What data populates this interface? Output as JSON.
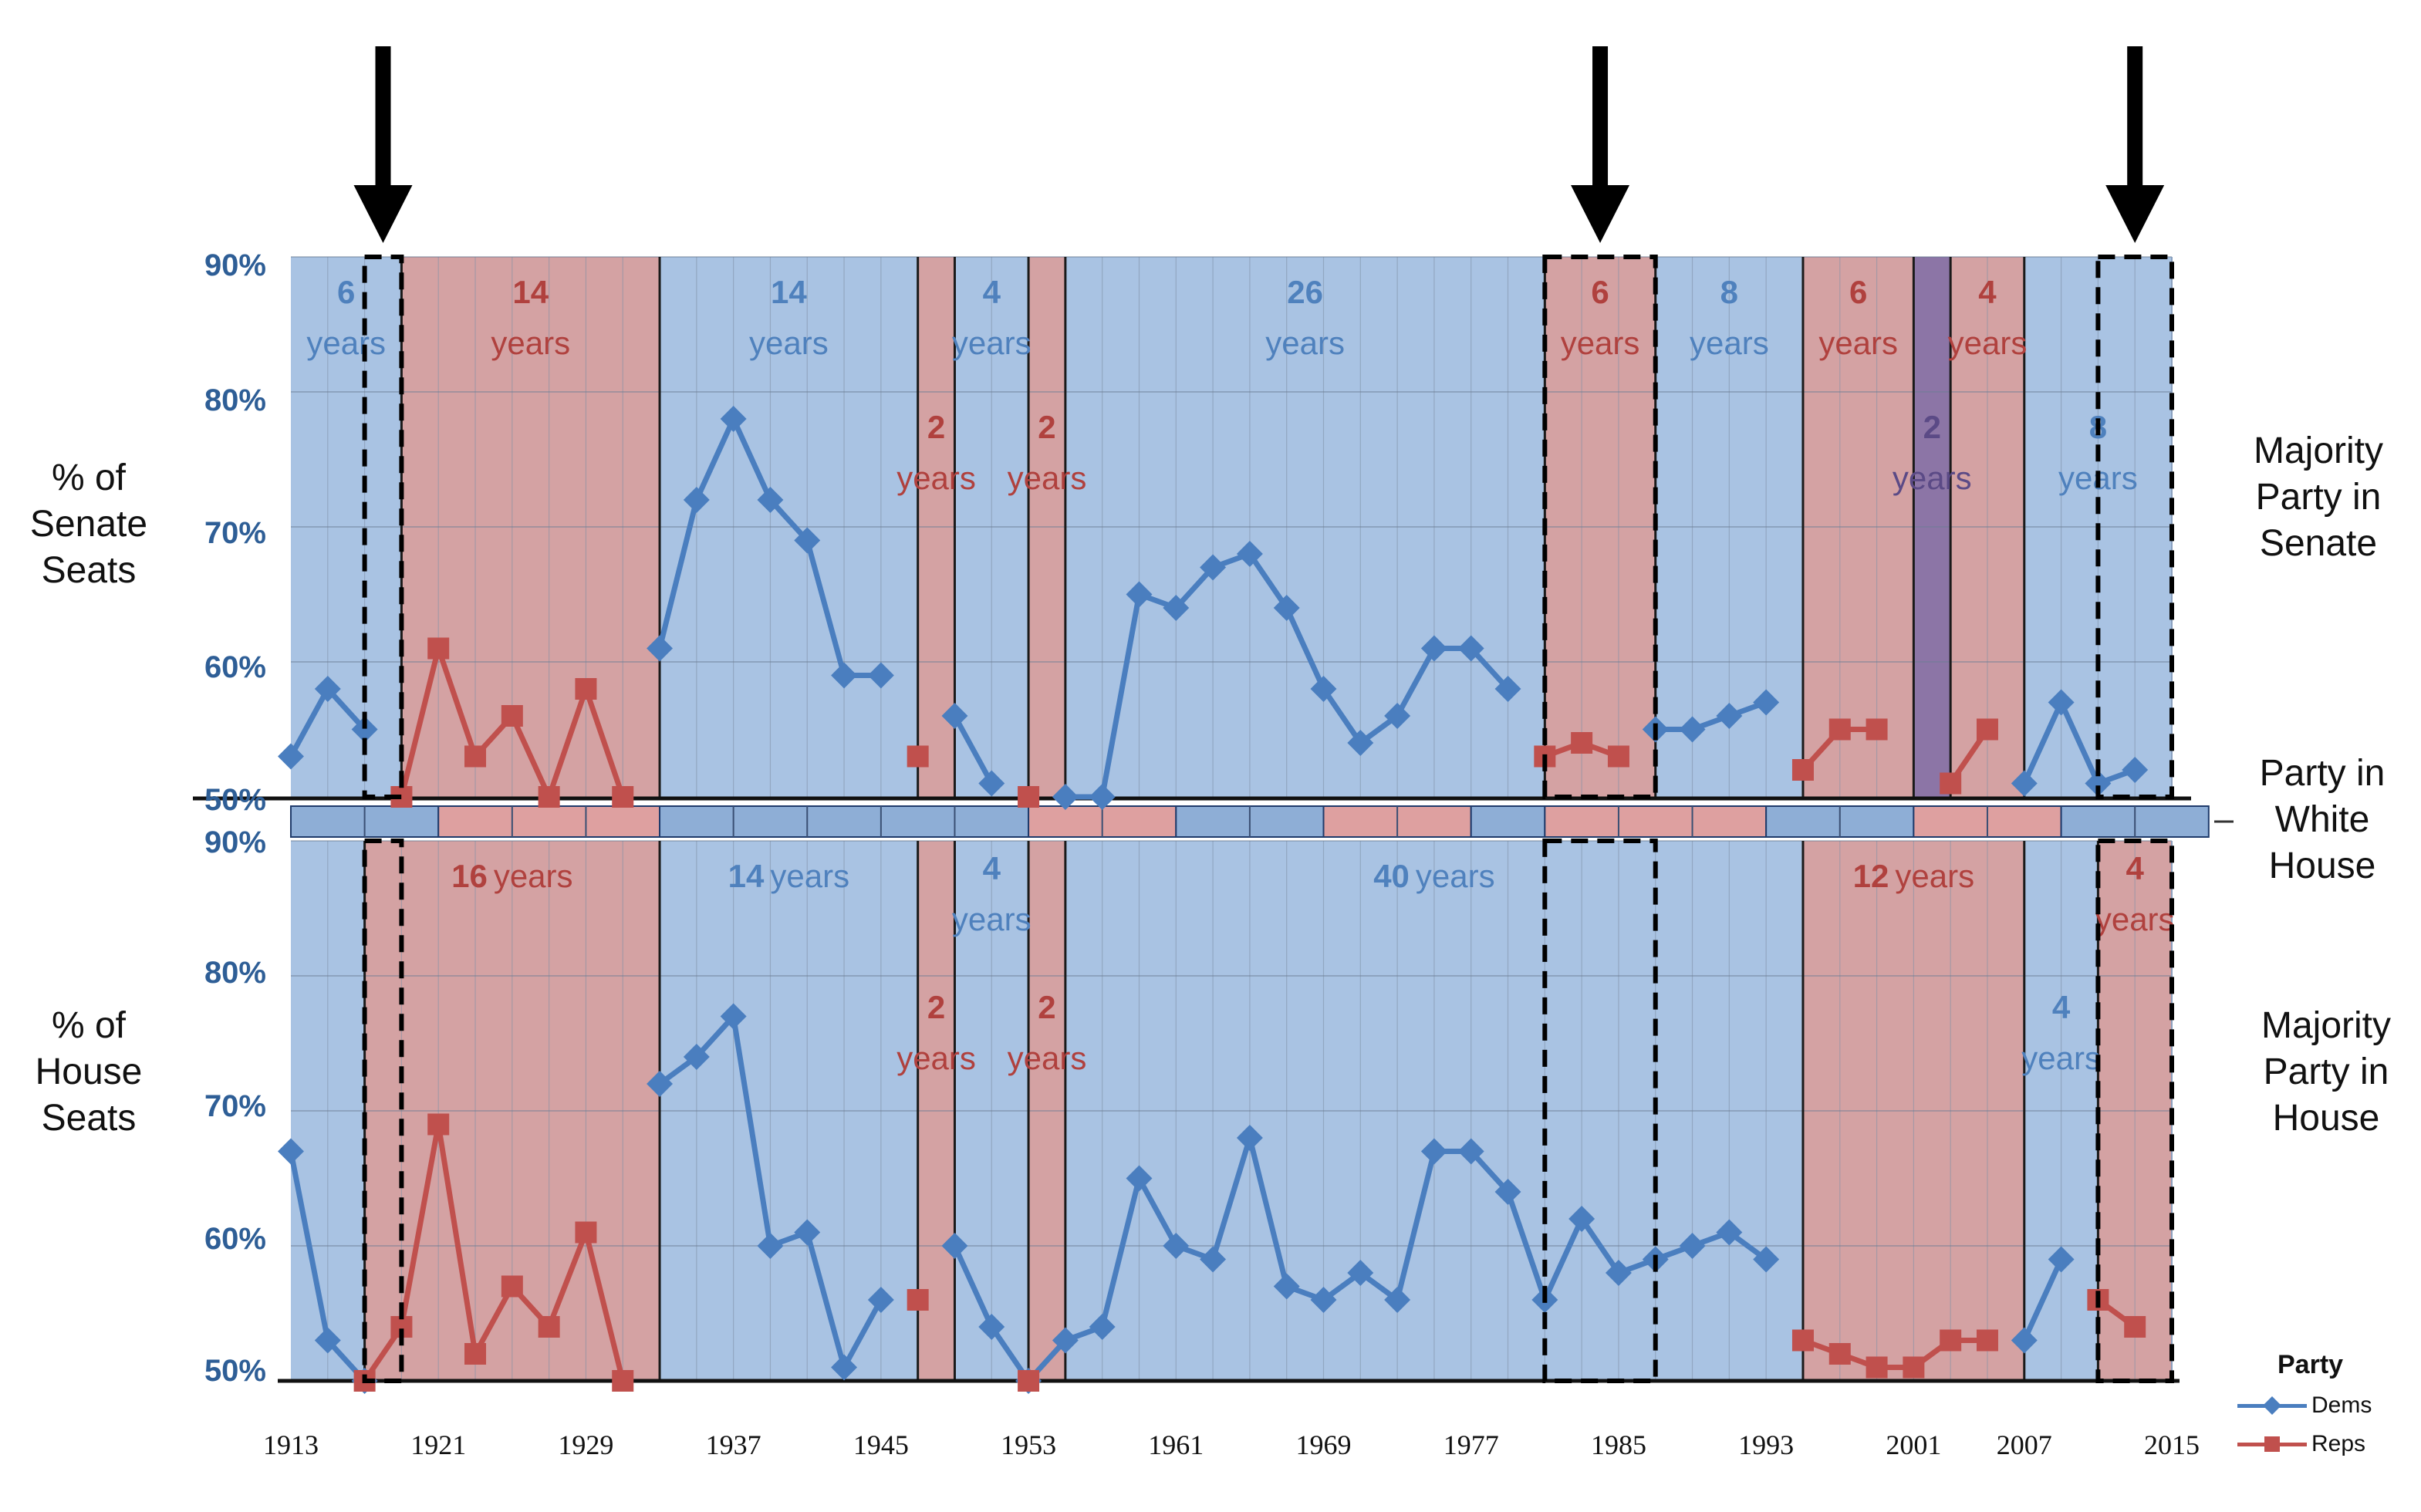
{
  "chart_data": {
    "type": "line",
    "x_ticks": [
      "1913",
      "1921",
      "1929",
      "1937",
      "1945",
      "1953",
      "1961",
      "1969",
      "1977",
      "1985",
      "1993",
      "2001",
      "2007",
      "2015"
    ],
    "legend": {
      "title": "Party",
      "items": [
        {
          "label": "Dems",
          "color": "#4a7ebf"
        },
        {
          "label": "Reps",
          "color": "#c0504d"
        }
      ]
    },
    "colors": {
      "dem_band": "#a9c3e3",
      "rep_band": "#d4a2a3",
      "split_band": "#8c75a6",
      "dem_line": "#4a7ebf",
      "rep_line": "#c0504d",
      "dem_text": "#4f81bd",
      "rep_text": "#b0413e",
      "split_text": "#5b4a86"
    },
    "senate": {
      "y_ticks": [
        "90%",
        "80%",
        "70%",
        "60%",
        "50%"
      ],
      "ylim": [
        50,
        90
      ],
      "bands": [
        {
          "from": 1913,
          "to": 1919,
          "party": "dem",
          "line1": "6",
          "line2": "years"
        },
        {
          "from": 1919,
          "to": 1933,
          "party": "rep",
          "line1": "14",
          "line2": "years"
        },
        {
          "from": 1933,
          "to": 1947,
          "party": "dem",
          "line1": "14",
          "line2": "years"
        },
        {
          "from": 1947,
          "to": 1949,
          "party": "rep",
          "line1": "2",
          "line2": "years"
        },
        {
          "from": 1949,
          "to": 1953,
          "party": "dem",
          "line1": "4",
          "line2": "years"
        },
        {
          "from": 1953,
          "to": 1955,
          "party": "rep",
          "line1": "2",
          "line2": "years"
        },
        {
          "from": 1955,
          "to": 1981,
          "party": "dem",
          "line1": "26",
          "line2": "years"
        },
        {
          "from": 1981,
          "to": 1987,
          "party": "rep",
          "line1": "6",
          "line2": "years"
        },
        {
          "from": 1987,
          "to": 1995,
          "party": "dem",
          "line1": "8",
          "line2": "years"
        },
        {
          "from": 1995,
          "to": 2001,
          "party": "rep",
          "line1": "6",
          "line2": "years"
        },
        {
          "from": 2001,
          "to": 2003,
          "party": "split",
          "line1": "2",
          "line2": "years"
        },
        {
          "from": 2003,
          "to": 2007,
          "party": "rep",
          "line1": "4",
          "line2": "years"
        },
        {
          "from": 2007,
          "to": 2015,
          "party": "dem",
          "line1": "8",
          "line2": "years"
        }
      ],
      "series": [
        {
          "name": "Dems",
          "points": [
            [
              1913,
              53
            ],
            [
              1915,
              58
            ],
            [
              1917,
              55
            ],
            [
              1933,
              61
            ],
            [
              1935,
              72
            ],
            [
              1937,
              78
            ],
            [
              1939,
              72
            ],
            [
              1941,
              69
            ],
            [
              1943,
              59
            ],
            [
              1945,
              59
            ],
            [
              1949,
              56
            ],
            [
              1951,
              51
            ],
            [
              1955,
              50
            ],
            [
              1957,
              50
            ],
            [
              1959,
              65
            ],
            [
              1961,
              64
            ],
            [
              1963,
              67
            ],
            [
              1965,
              68
            ],
            [
              1967,
              64
            ],
            [
              1969,
              58
            ],
            [
              1971,
              54
            ],
            [
              1973,
              56
            ],
            [
              1975,
              61
            ],
            [
              1977,
              61
            ],
            [
              1979,
              58
            ],
            [
              1987,
              55
            ],
            [
              1989,
              55
            ],
            [
              1991,
              56
            ],
            [
              1993,
              57
            ],
            [
              2007,
              51
            ],
            [
              2009,
              57
            ],
            [
              2011,
              51
            ],
            [
              2013,
              52
            ]
          ]
        },
        {
          "name": "Reps",
          "points": [
            [
              1919,
              50
            ],
            [
              1921,
              61
            ],
            [
              1923,
              53
            ],
            [
              1925,
              56
            ],
            [
              1927,
              50
            ],
            [
              1929,
              58
            ],
            [
              1931,
              50
            ],
            [
              1947,
              53
            ],
            [
              1953,
              50
            ],
            [
              1981,
              53
            ],
            [
              1983,
              54
            ],
            [
              1985,
              53
            ],
            [
              1995,
              52
            ],
            [
              1997,
              55
            ],
            [
              1999,
              55
            ],
            [
              2003,
              51
            ],
            [
              2005,
              55
            ]
          ]
        }
      ]
    },
    "white_house": [
      {
        "from": 1913,
        "to": 1921,
        "party": "dem"
      },
      {
        "from": 1921,
        "to": 1933,
        "party": "rep"
      },
      {
        "from": 1933,
        "to": 1953,
        "party": "dem"
      },
      {
        "from": 1953,
        "to": 1961,
        "party": "rep"
      },
      {
        "from": 1961,
        "to": 1969,
        "party": "dem"
      },
      {
        "from": 1969,
        "to": 1977,
        "party": "rep"
      },
      {
        "from": 1977,
        "to": 1981,
        "party": "dem"
      },
      {
        "from": 1981,
        "to": 1993,
        "party": "rep"
      },
      {
        "from": 1993,
        "to": 2001,
        "party": "dem"
      },
      {
        "from": 2001,
        "to": 2009,
        "party": "rep"
      },
      {
        "from": 2009,
        "to": 2017,
        "party": "dem"
      }
    ],
    "house": {
      "y_ticks": [
        "90%",
        "80%",
        "70%",
        "60%",
        "50%"
      ],
      "ylim": [
        50,
        90
      ],
      "bands": [
        {
          "from": 1913,
          "to": 1917,
          "party": "dem",
          "line1": "",
          "line2": ""
        },
        {
          "from": 1917,
          "to": 1933,
          "party": "rep",
          "line1": "16",
          "line2": "years",
          "inline": true
        },
        {
          "from": 1933,
          "to": 1947,
          "party": "dem",
          "line1": "14",
          "line2": "years",
          "inline": true
        },
        {
          "from": 1947,
          "to": 1949,
          "party": "rep",
          "line1": "2",
          "line2": "years"
        },
        {
          "from": 1949,
          "to": 1953,
          "party": "dem",
          "line1": "4",
          "line2": "years"
        },
        {
          "from": 1953,
          "to": 1955,
          "party": "rep",
          "line1": "2",
          "line2": "years"
        },
        {
          "from": 1955,
          "to": 1995,
          "party": "dem",
          "line1": "40",
          "line2": "years",
          "inline": true
        },
        {
          "from": 1995,
          "to": 2007,
          "party": "rep",
          "line1": "12",
          "line2": "years",
          "inline": true
        },
        {
          "from": 2007,
          "to": 2011,
          "party": "dem",
          "line1": "4",
          "line2": "years"
        },
        {
          "from": 2011,
          "to": 2015,
          "party": "rep",
          "line1": "4",
          "line2": "years"
        }
      ],
      "series": [
        {
          "name": "Dems",
          "points": [
            [
              1913,
              67
            ],
            [
              1915,
              53
            ],
            [
              1917,
              50
            ],
            [
              1933,
              72
            ],
            [
              1935,
              74
            ],
            [
              1937,
              77
            ],
            [
              1939,
              60
            ],
            [
              1941,
              61
            ],
            [
              1943,
              51
            ],
            [
              1945,
              56
            ],
            [
              1949,
              60
            ],
            [
              1951,
              54
            ],
            [
              1953,
              50
            ],
            [
              1955,
              53
            ],
            [
              1957,
              54
            ],
            [
              1959,
              65
            ],
            [
              1961,
              60
            ],
            [
              1963,
              59
            ],
            [
              1965,
              68
            ],
            [
              1967,
              57
            ],
            [
              1969,
              56
            ],
            [
              1971,
              58
            ],
            [
              1973,
              56
            ],
            [
              1975,
              67
            ],
            [
              1977,
              67
            ],
            [
              1979,
              64
            ],
            [
              1981,
              56
            ],
            [
              1983,
              62
            ],
            [
              1985,
              58
            ],
            [
              1987,
              59
            ],
            [
              1989,
              60
            ],
            [
              1991,
              61
            ],
            [
              1993,
              59
            ],
            [
              2007,
              53
            ],
            [
              2009,
              59
            ]
          ]
        },
        {
          "name": "Reps",
          "points": [
            [
              1917,
              50
            ],
            [
              1919,
              54
            ],
            [
              1921,
              69
            ],
            [
              1923,
              52
            ],
            [
              1925,
              57
            ],
            [
              1927,
              54
            ],
            [
              1929,
              61
            ],
            [
              1931,
              50
            ],
            [
              1947,
              56
            ],
            [
              1953,
              50
            ],
            [
              1995,
              53
            ],
            [
              1997,
              52
            ],
            [
              1999,
              51
            ],
            [
              2001,
              51
            ],
            [
              2003,
              53
            ],
            [
              2005,
              53
            ],
            [
              2011,
              56
            ],
            [
              2013,
              54
            ]
          ]
        }
      ]
    },
    "highlight_years": [
      1918,
      1982,
      2012
    ]
  },
  "labels": {
    "senate_left": "% of\nSenate\nSeats",
    "house_left": "% of\nHouse\nSeats",
    "senate_right": "Majority\nParty in\nSenate",
    "white_house_right": "Party in\nWhite\nHouse",
    "house_right": "Majority\nParty in\nHouse"
  }
}
